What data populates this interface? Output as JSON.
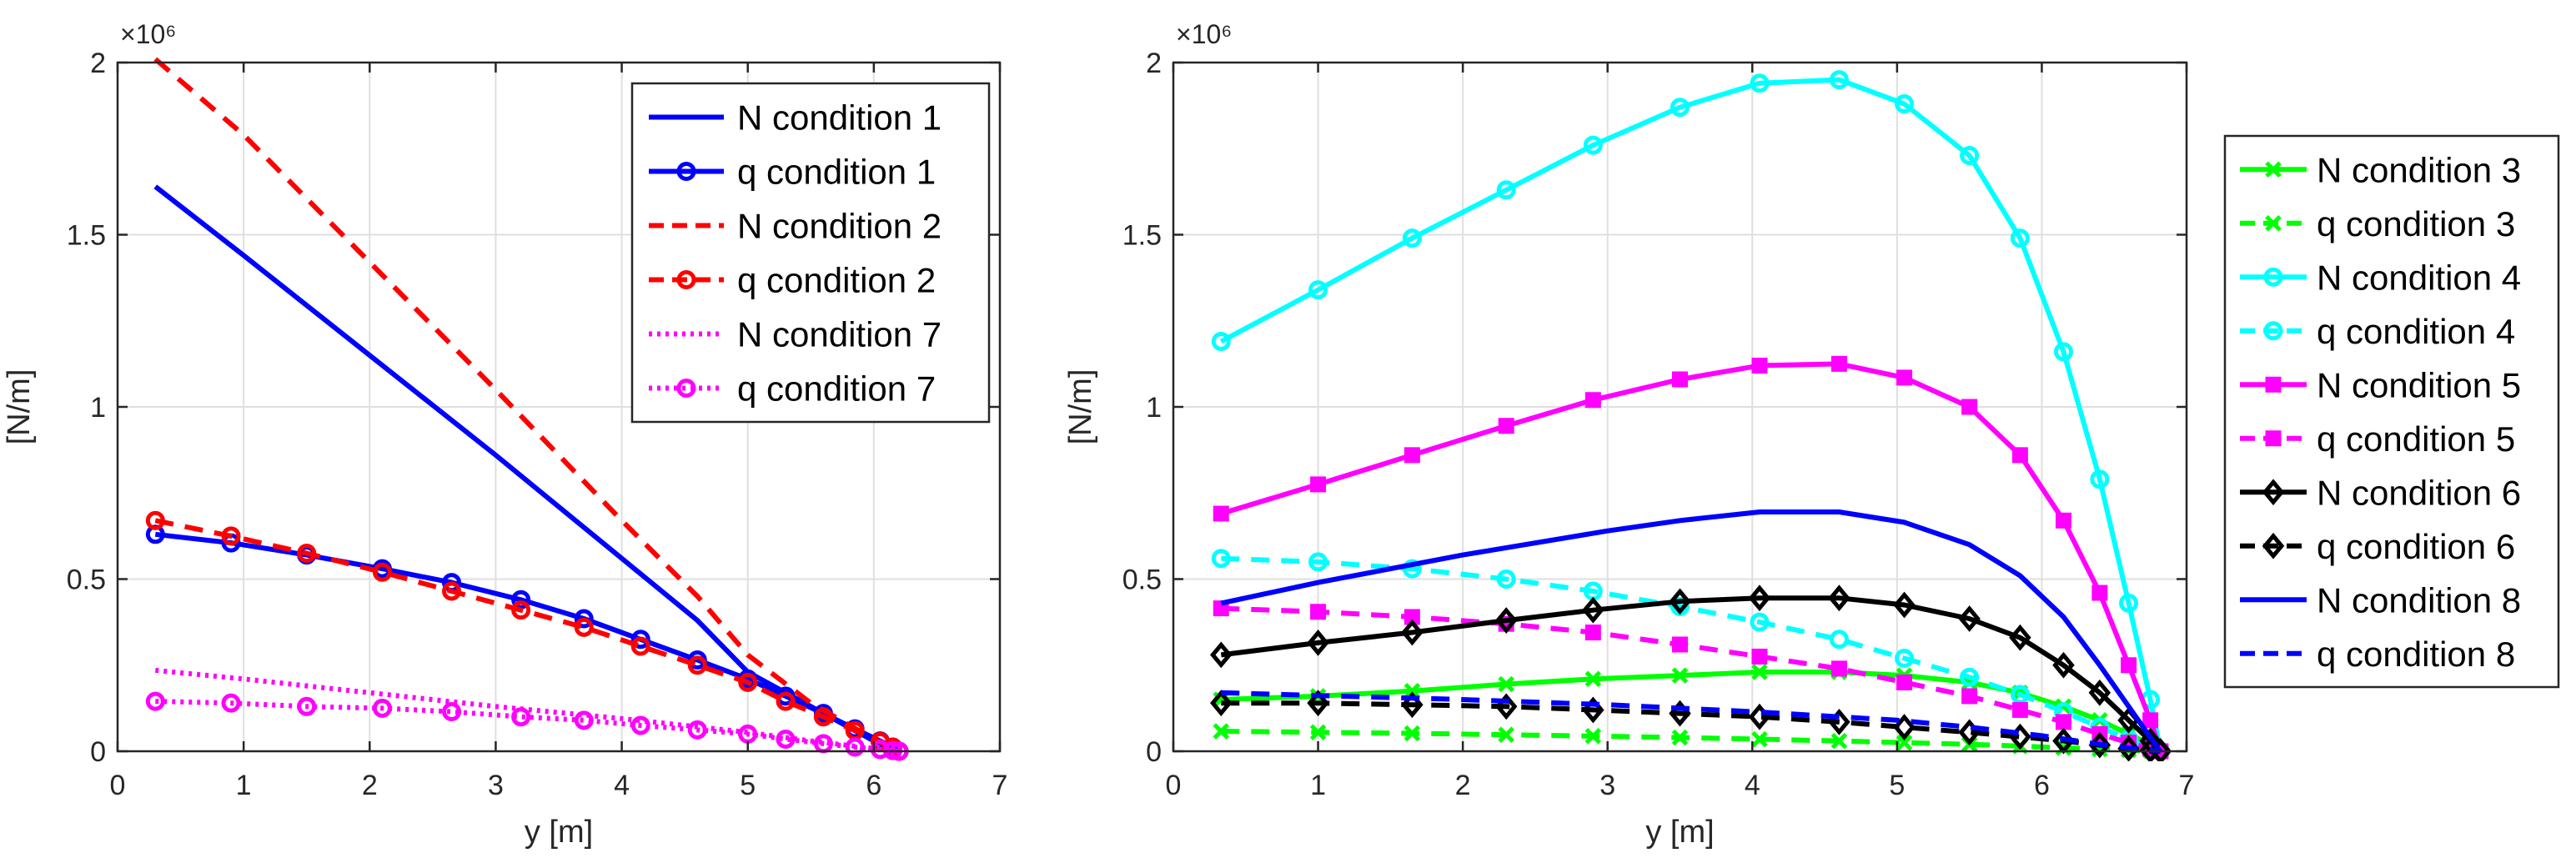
{
  "chart_data": [
    {
      "type": "line",
      "xlabel": "y [m]",
      "ylabel": "[N/m]",
      "xlim": [
        0,
        7
      ],
      "ylim": [
        0,
        2000000
      ],
      "xticks": [
        0,
        1,
        2,
        3,
        4,
        5,
        6,
        7
      ],
      "xtick_labels": [
        "0",
        "1",
        "2",
        "3",
        "4",
        "5",
        "6",
        "7"
      ],
      "yticks": [
        0,
        500000,
        1000000,
        1500000,
        2000000
      ],
      "ytick_labels": [
        "0",
        "0.5",
        "1",
        "1.5",
        "2"
      ],
      "y_exponent_label": "×10⁶",
      "grid": true,
      "legend_position": "top-right (inside)",
      "series": [
        {
          "name": "N condition 1",
          "color": "#0000FF",
          "dash": "solid",
          "marker": "none",
          "x": [
            0.3,
            1.0,
            2.0,
            3.0,
            4.0,
            4.6,
            5.0,
            5.5,
            6.0,
            6.2
          ],
          "y": [
            1640000,
            1440000,
            1150000,
            860000,
            560000,
            380000,
            230000,
            130000,
            30000,
            0
          ]
        },
        {
          "name": "q condition 1",
          "color": "#0000FF",
          "dash": "solid",
          "marker": "circle",
          "x": [
            0.3,
            0.9,
            1.5,
            2.1,
            2.65,
            3.2,
            3.7,
            4.15,
            4.6,
            5.0,
            5.3,
            5.6,
            5.85,
            6.05,
            6.15,
            6.2
          ],
          "y": [
            630000,
            605000,
            570000,
            530000,
            490000,
            440000,
            385000,
            325000,
            265000,
            210000,
            160000,
            110000,
            65000,
            30000,
            12000,
            0
          ]
        },
        {
          "name": "N condition 2",
          "color": "#FF0000",
          "dash": "dashed",
          "marker": "none",
          "x": [
            0.3,
            1.0,
            2.0,
            3.0,
            4.0,
            4.6,
            5.0,
            5.5,
            6.0,
            6.2
          ],
          "y": [
            2010000,
            1790000,
            1420000,
            1050000,
            670000,
            450000,
            280000,
            140000,
            35000,
            0
          ]
        },
        {
          "name": "q condition 2",
          "color": "#FF0000",
          "dash": "dashed",
          "marker": "circle",
          "x": [
            0.3,
            0.9,
            1.5,
            2.1,
            2.65,
            3.2,
            3.7,
            4.15,
            4.6,
            5.0,
            5.3,
            5.6,
            5.85,
            6.05,
            6.15,
            6.2
          ],
          "y": [
            670000,
            625000,
            575000,
            520000,
            465000,
            410000,
            360000,
            305000,
            250000,
            200000,
            145000,
            100000,
            60000,
            28000,
            12000,
            0
          ]
        },
        {
          "name": "N condition 7",
          "color": "#FF00FF",
          "dash": "dotted",
          "marker": "none",
          "x": [
            0.3,
            1.0,
            2.0,
            3.0,
            4.0,
            5.0,
            5.5,
            6.0,
            6.2
          ],
          "y": [
            235000,
            210000,
            170000,
            130000,
            95000,
            55000,
            30000,
            8000,
            0
          ]
        },
        {
          "name": "q condition 7",
          "color": "#FF00FF",
          "dash": "dotted",
          "marker": "circle",
          "x": [
            0.3,
            0.9,
            1.5,
            2.1,
            2.65,
            3.2,
            3.7,
            4.15,
            4.6,
            5.0,
            5.3,
            5.6,
            5.85,
            6.05,
            6.15,
            6.2
          ],
          "y": [
            145000,
            140000,
            130000,
            125000,
            115000,
            100000,
            90000,
            75000,
            62000,
            50000,
            35000,
            22000,
            12000,
            5000,
            2000,
            0
          ]
        }
      ]
    },
    {
      "type": "line",
      "xlabel": "y [m]",
      "ylabel": "[N/m]",
      "xlim": [
        0,
        7
      ],
      "ylim": [
        0,
        2000000
      ],
      "xticks": [
        0,
        1,
        2,
        3,
        4,
        5,
        6,
        7
      ],
      "xtick_labels": [
        "0",
        "1",
        "2",
        "3",
        "4",
        "5",
        "6",
        "7"
      ],
      "yticks": [
        0,
        500000,
        1000000,
        1500000,
        2000000
      ],
      "ytick_labels": [
        "0",
        "0.5",
        "1",
        "1.5",
        "2"
      ],
      "y_exponent_label": "×10⁶",
      "grid": true,
      "legend_position": "right (outside)",
      "series": [
        {
          "name": "N condition 3",
          "color": "#00FF00",
          "dash": "solid",
          "marker": "x",
          "x": [
            0.33,
            1.0,
            1.65,
            2.3,
            2.9,
            3.5,
            4.05,
            4.6,
            5.05,
            5.5,
            5.85,
            6.15,
            6.4,
            6.6,
            6.75,
            6.82
          ],
          "y": [
            150000,
            160000,
            175000,
            195000,
            210000,
            220000,
            230000,
            230000,
            220000,
            200000,
            170000,
            130000,
            90000,
            50000,
            20000,
            0
          ]
        },
        {
          "name": "q condition 3",
          "color": "#00FF00",
          "dash": "dashed",
          "marker": "x",
          "x": [
            0.33,
            1.0,
            1.65,
            2.3,
            2.9,
            3.5,
            4.05,
            4.6,
            5.05,
            5.5,
            5.85,
            6.15,
            6.4,
            6.6,
            6.75,
            6.82
          ],
          "y": [
            58000,
            55000,
            52000,
            48000,
            44000,
            40000,
            35000,
            30000,
            25000,
            20000,
            15000,
            10000,
            6000,
            3000,
            1000,
            0
          ]
        },
        {
          "name": "N condition 4",
          "color": "#00FFFF",
          "dash": "solid",
          "marker": "circle",
          "x": [
            0.33,
            1.0,
            1.65,
            2.3,
            2.9,
            3.5,
            4.05,
            4.6,
            5.05,
            5.5,
            5.85,
            6.15,
            6.4,
            6.6,
            6.75,
            6.82
          ],
          "y": [
            1190000,
            1340000,
            1490000,
            1630000,
            1760000,
            1870000,
            1940000,
            1950000,
            1880000,
            1730000,
            1490000,
            1160000,
            790000,
            430000,
            150000,
            0
          ]
        },
        {
          "name": "q condition 4",
          "color": "#00FFFF",
          "dash": "dashed",
          "marker": "circle",
          "x": [
            0.33,
            1.0,
            1.65,
            2.3,
            2.9,
            3.5,
            4.05,
            4.6,
            5.05,
            5.5,
            5.85,
            6.15,
            6.4,
            6.6,
            6.75,
            6.82
          ],
          "y": [
            560000,
            550000,
            530000,
            500000,
            465000,
            420000,
            375000,
            325000,
            270000,
            215000,
            165000,
            115000,
            70000,
            35000,
            10000,
            0
          ]
        },
        {
          "name": "N condition 5",
          "color": "#FF00FF",
          "dash": "solid",
          "marker": "square",
          "x": [
            0.33,
            1.0,
            1.65,
            2.3,
            2.9,
            3.5,
            4.05,
            4.6,
            5.05,
            5.5,
            5.85,
            6.15,
            6.4,
            6.6,
            6.75,
            6.82
          ],
          "y": [
            690000,
            775000,
            860000,
            945000,
            1020000,
            1080000,
            1120000,
            1125000,
            1085000,
            1000000,
            860000,
            670000,
            460000,
            250000,
            90000,
            0
          ]
        },
        {
          "name": "q condition 5",
          "color": "#FF00FF",
          "dash": "dashed",
          "marker": "square",
          "x": [
            0.33,
            1.0,
            1.65,
            2.3,
            2.9,
            3.5,
            4.05,
            4.6,
            5.05,
            5.5,
            5.85,
            6.15,
            6.4,
            6.6,
            6.75,
            6.82
          ],
          "y": [
            415000,
            405000,
            390000,
            370000,
            345000,
            310000,
            275000,
            240000,
            200000,
            160000,
            120000,
            85000,
            50000,
            25000,
            8000,
            0
          ]
        },
        {
          "name": "N condition 6",
          "color": "#000000",
          "dash": "solid",
          "marker": "diamond",
          "x": [
            0.33,
            1.0,
            1.65,
            2.3,
            2.9,
            3.5,
            4.05,
            4.6,
            5.05,
            5.5,
            5.85,
            6.15,
            6.4,
            6.6,
            6.75,
            6.82
          ],
          "y": [
            280000,
            315000,
            345000,
            380000,
            410000,
            435000,
            445000,
            445000,
            425000,
            385000,
            330000,
            250000,
            170000,
            90000,
            30000,
            0
          ]
        },
        {
          "name": "q condition 6",
          "color": "#000000",
          "dash": "dashed",
          "marker": "diamond",
          "x": [
            0.33,
            1.0,
            1.65,
            2.3,
            2.9,
            3.5,
            4.05,
            4.6,
            5.05,
            5.5,
            5.85,
            6.15,
            6.4,
            6.6,
            6.75,
            6.82
          ],
          "y": [
            140000,
            140000,
            135000,
            130000,
            120000,
            110000,
            100000,
            85000,
            70000,
            55000,
            42000,
            30000,
            18000,
            8000,
            3000,
            0
          ]
        },
        {
          "name": "N condition 8",
          "color": "#0000FF",
          "dash": "solid",
          "marker": "none",
          "x": [
            0.33,
            1.0,
            2.0,
            3.0,
            3.5,
            4.05,
            4.6,
            5.05,
            5.5,
            5.85,
            6.15,
            6.4,
            6.6,
            6.75,
            6.82
          ],
          "y": [
            430000,
            490000,
            570000,
            640000,
            670000,
            695000,
            695000,
            665000,
            600000,
            510000,
            390000,
            250000,
            130000,
            40000,
            0
          ]
        },
        {
          "name": "q condition 8",
          "color": "#0000FF",
          "dash": "dashed",
          "marker": "none",
          "x": [
            0.33,
            1.0,
            2.0,
            3.0,
            4.0,
            5.0,
            5.5,
            6.0,
            6.4,
            6.6,
            6.82
          ],
          "y": [
            170000,
            162000,
            150000,
            135000,
            115000,
            90000,
            70000,
            45000,
            20000,
            10000,
            0
          ]
        }
      ]
    }
  ]
}
